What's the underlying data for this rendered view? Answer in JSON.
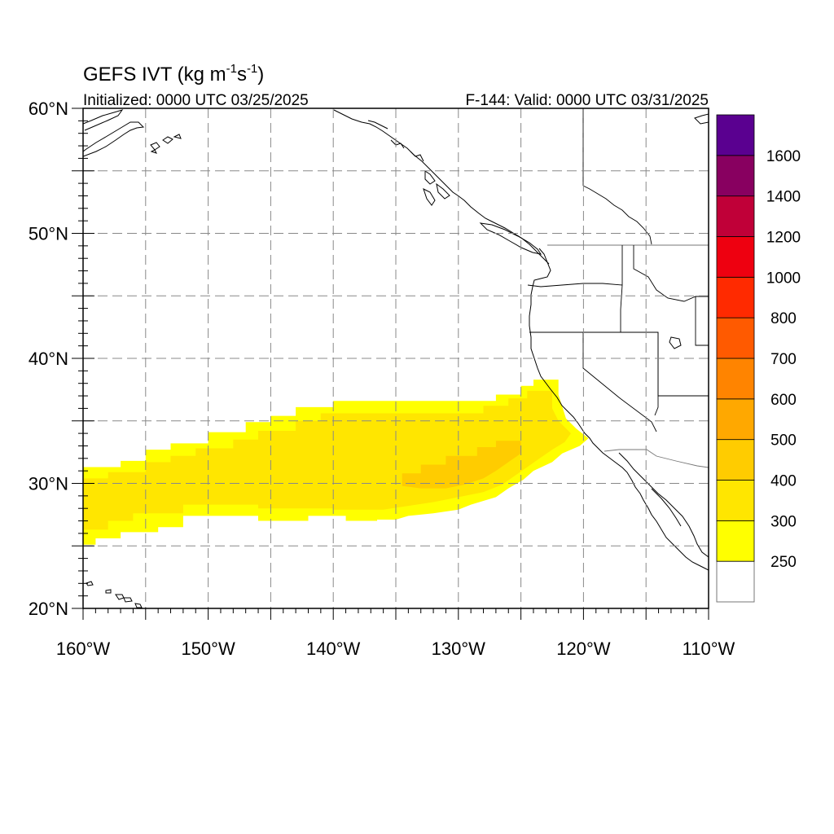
{
  "title": {
    "main": "GEFS IVT (kg m",
    "sup1": "-1",
    "mid": "s",
    "sup2": "-1",
    "end": ")"
  },
  "subtitle_left": "Initialized: 0000 UTC 03/25/2025",
  "subtitle_right": "F-144: Valid: 0000 UTC 03/31/2025",
  "map": {
    "lon_range": [
      -160,
      -110
    ],
    "lat_range": [
      20,
      60
    ],
    "lon_ticks": [
      {
        "value": -160,
        "label": "160°W"
      },
      {
        "value": -150,
        "label": "150°W"
      },
      {
        "value": -140,
        "label": "140°W"
      },
      {
        "value": -130,
        "label": "130°W"
      },
      {
        "value": -120,
        "label": "120°W"
      },
      {
        "value": -110,
        "label": "110°W"
      }
    ],
    "lat_ticks": [
      {
        "value": 60,
        "label": "60°N"
      },
      {
        "value": 50,
        "label": "50°N"
      },
      {
        "value": 40,
        "label": "40°N"
      },
      {
        "value": 30,
        "label": "30°N"
      },
      {
        "value": 20,
        "label": "20°N"
      }
    ],
    "grid_lon_step": 5,
    "grid_lat_step": 5,
    "grid": "dashed"
  },
  "colorbar": {
    "labels": [
      "250",
      "300",
      "400",
      "500",
      "600",
      "700",
      "800",
      "1000",
      "1200",
      "1400",
      "1600"
    ],
    "colors": [
      "#ffffff",
      "#ffff00",
      "#ffe600",
      "#ffcc00",
      "#ffa800",
      "#ff8400",
      "#ff5a00",
      "#ff2a00",
      "#ee0010",
      "#c00038",
      "#880060",
      "#5a0090"
    ]
  },
  "ivt_field": {
    "units": "kg m-1 s-1",
    "bands": [
      {
        "min_level": 250,
        "color": "#ffff00",
        "polygon": [
          [
            -160,
            25.1
          ],
          [
            -160,
            31.3
          ],
          [
            -157,
            31.3
          ],
          [
            -157,
            31.8
          ],
          [
            -155,
            31.8
          ],
          [
            -155,
            32.7
          ],
          [
            -153,
            32.7
          ],
          [
            -153,
            33.2
          ],
          [
            -150,
            33.2
          ],
          [
            -150,
            34.1
          ],
          [
            -147,
            34.1
          ],
          [
            -147,
            34.9
          ],
          [
            -145,
            34.9
          ],
          [
            -145,
            35.4
          ],
          [
            -143,
            35.4
          ],
          [
            -143,
            36.1
          ],
          [
            -140,
            36.1
          ],
          [
            -140,
            36.6
          ],
          [
            -127,
            36.6
          ],
          [
            -127,
            37.1
          ],
          [
            -125,
            37.1
          ],
          [
            -125,
            37.8
          ],
          [
            -124,
            37.8
          ],
          [
            -124,
            38.3
          ],
          [
            -122,
            38.3
          ],
          [
            -122,
            37.1
          ],
          [
            -121.4,
            35.2
          ],
          [
            -120.6,
            34.4
          ],
          [
            -119.6,
            33.6
          ],
          [
            -120.3,
            33.0
          ],
          [
            -121.7,
            32.4
          ],
          [
            -122.5,
            31.7
          ],
          [
            -124,
            31.0
          ],
          [
            -124.8,
            30.3
          ],
          [
            -126,
            29.6
          ],
          [
            -127,
            28.9
          ],
          [
            -129,
            28.3
          ],
          [
            -130,
            27.9
          ],
          [
            -132,
            27.6
          ],
          [
            -134,
            27.4
          ],
          [
            -135,
            27.1
          ],
          [
            -136.5,
            27.1
          ],
          [
            -136.5,
            27.0
          ],
          [
            -139,
            27.0
          ],
          [
            -139,
            27.4
          ],
          [
            -142,
            27.4
          ],
          [
            -142,
            27.0
          ],
          [
            -146,
            27.0
          ],
          [
            -146,
            27.4
          ],
          [
            -152,
            27.4
          ],
          [
            -152,
            26.5
          ],
          [
            -154,
            26.5
          ],
          [
            -154,
            26.1
          ],
          [
            -157,
            26.1
          ],
          [
            -157,
            25.6
          ],
          [
            -159,
            25.6
          ],
          [
            -159,
            25.1
          ]
        ]
      },
      {
        "min_level": 300,
        "color": "#ffe600",
        "polygon": [
          [
            -160,
            26.3
          ],
          [
            -160,
            30.4
          ],
          [
            -158,
            30.4
          ],
          [
            -158,
            30.9
          ],
          [
            -155,
            30.9
          ],
          [
            -155,
            31.7
          ],
          [
            -153,
            31.7
          ],
          [
            -153,
            32.2
          ],
          [
            -151,
            32.2
          ],
          [
            -151,
            32.8
          ],
          [
            -148,
            32.8
          ],
          [
            -148,
            33.5
          ],
          [
            -146,
            33.5
          ],
          [
            -146,
            34.2
          ],
          [
            -143,
            34.2
          ],
          [
            -143,
            35.0
          ],
          [
            -141,
            35.0
          ],
          [
            -141,
            35.6
          ],
          [
            -128,
            35.6
          ],
          [
            -128,
            36.2
          ],
          [
            -126,
            36.2
          ],
          [
            -126,
            36.8
          ],
          [
            -124.5,
            36.8
          ],
          [
            -124.5,
            37.4
          ],
          [
            -122.5,
            37.4
          ],
          [
            -122.5,
            36.0
          ],
          [
            -122.0,
            35.0
          ],
          [
            -121.0,
            34.0
          ],
          [
            -121.5,
            33.3
          ],
          [
            -122.5,
            32.7
          ],
          [
            -123.5,
            32.0
          ],
          [
            -124.5,
            31.3
          ],
          [
            -125.5,
            30.6
          ],
          [
            -126.5,
            29.9
          ],
          [
            -128,
            29.3
          ],
          [
            -130,
            28.9
          ],
          [
            -132,
            28.5
          ],
          [
            -134,
            28.2
          ],
          [
            -136,
            27.9
          ],
          [
            -140,
            27.9
          ],
          [
            -140,
            28.0
          ],
          [
            -146,
            28.0
          ],
          [
            -146,
            28.3
          ],
          [
            -152,
            28.3
          ],
          [
            -152,
            27.6
          ],
          [
            -156,
            27.6
          ],
          [
            -156,
            27.0
          ],
          [
            -158,
            27.0
          ],
          [
            -158,
            26.3
          ]
        ]
      },
      {
        "min_level": 400,
        "color": "#ffcc00",
        "polygon": [
          [
            -134.5,
            29.8
          ],
          [
            -134.5,
            30.8
          ],
          [
            -133,
            30.8
          ],
          [
            -133,
            31.5
          ],
          [
            -131,
            31.5
          ],
          [
            -131,
            32.2
          ],
          [
            -128.5,
            32.2
          ],
          [
            -128.5,
            32.9
          ],
          [
            -127,
            32.9
          ],
          [
            -127,
            33.4
          ],
          [
            -125,
            33.4
          ],
          [
            -125,
            32.4
          ],
          [
            -126,
            31.7
          ],
          [
            -127,
            31.0
          ],
          [
            -128,
            30.4
          ],
          [
            -129.5,
            29.9
          ],
          [
            -131,
            29.6
          ],
          [
            -133,
            29.6
          ]
        ]
      }
    ]
  }
}
